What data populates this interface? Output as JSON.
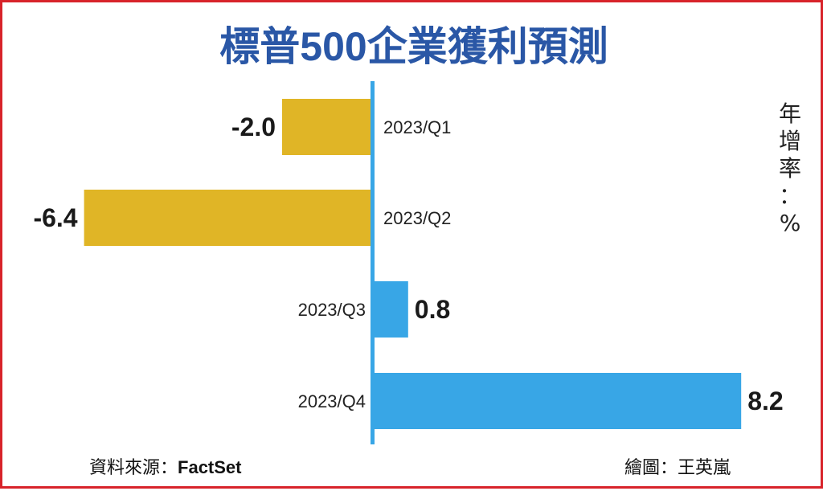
{
  "chart_data": {
    "type": "bar",
    "orientation": "horizontal",
    "title": "標普500企業獲利預測",
    "unit_label": "年增率：%",
    "categories": [
      "2023/Q1",
      "2023/Q2",
      "2023/Q3",
      "2023/Q4"
    ],
    "values": [
      -2.0,
      -6.4,
      0.8,
      8.2
    ],
    "value_labels": [
      "-2.0",
      "-6.4",
      "0.8",
      "8.2"
    ],
    "colors": {
      "negative": "#e0b526",
      "positive": "#38a6e6",
      "axis": "#38a6e6"
    },
    "grid": false
  },
  "footer": {
    "source_prefix": "資料來源：",
    "source_brand": "FactSet",
    "credit": "繪圖：王英嵐"
  }
}
